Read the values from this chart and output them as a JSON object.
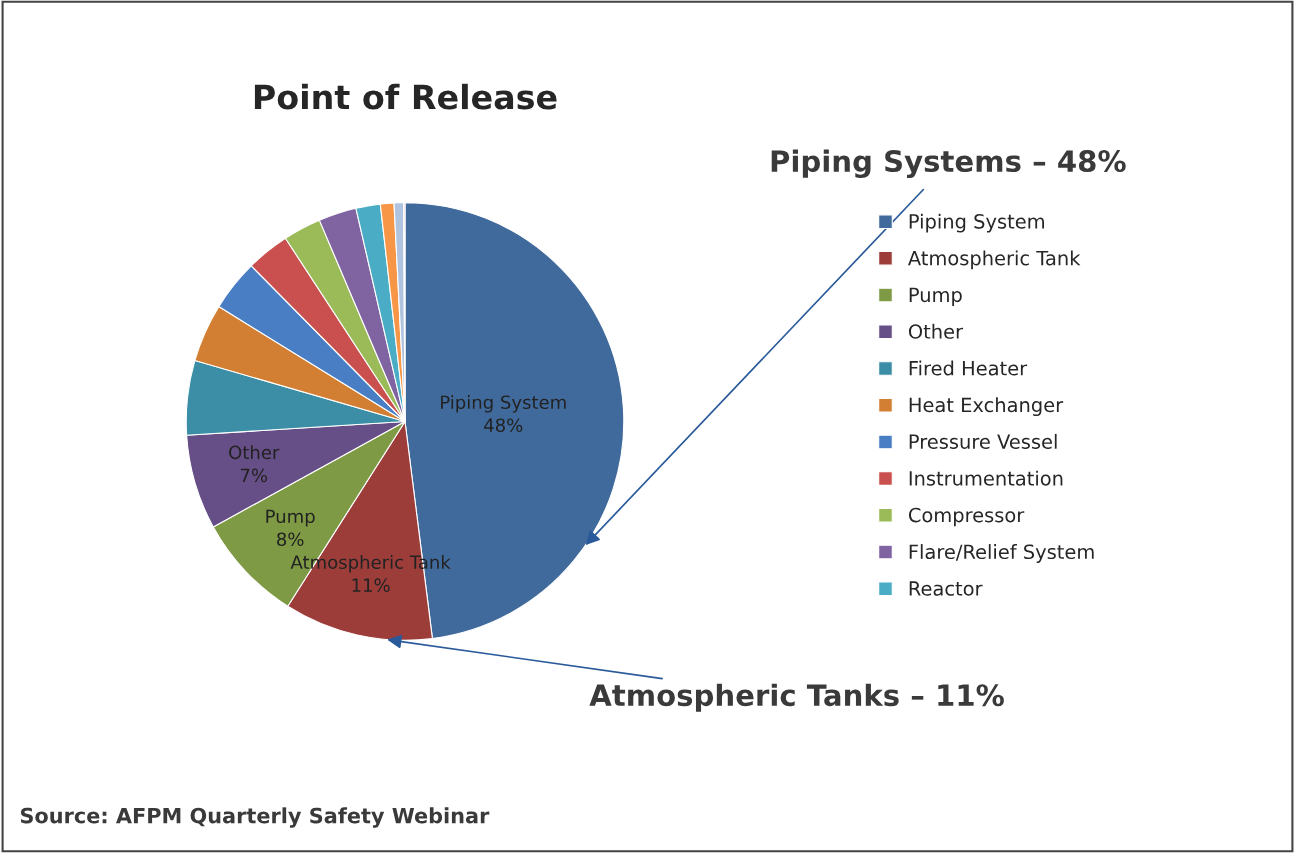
{
  "chart_data": {
    "type": "pie",
    "title": "Point of Release",
    "categories": [
      "Piping System",
      "Atmospheric Tank",
      "Pump",
      "Other",
      "Fired Heater",
      "Heat Exchanger",
      "Pressure Vessel",
      "Instrumentation",
      "Compressor",
      "Flare/Relief System",
      "Reactor",
      null,
      null,
      null
    ],
    "values": [
      48,
      11,
      8,
      7,
      5.5,
      4.3,
      3.8,
      3.2,
      2.8,
      2.8,
      1.8,
      1.0,
      0.7,
      0.1
    ],
    "colors": [
      "#406a9c",
      "#9c3d3a",
      "#7e9a44",
      "#664e86",
      "#3b8ea5",
      "#d27f33",
      "#4a7ec4",
      "#c9504e",
      "#9bbb59",
      "#8064a2",
      "#4bacc6",
      "#f79646",
      "#b0c4e0",
      "#e6a0a0"
    ],
    "value_labels": [
      "48%",
      "11%",
      "8%",
      "7%",
      null,
      null,
      null,
      null,
      null,
      null,
      null,
      null,
      null,
      null
    ],
    "legend": "right",
    "annotations": [
      "Piping Systems – 48%",
      "Atmospheric Tanks – 11%",
      "Source: AFPM Quarterly Safety Webinar"
    ]
  }
}
